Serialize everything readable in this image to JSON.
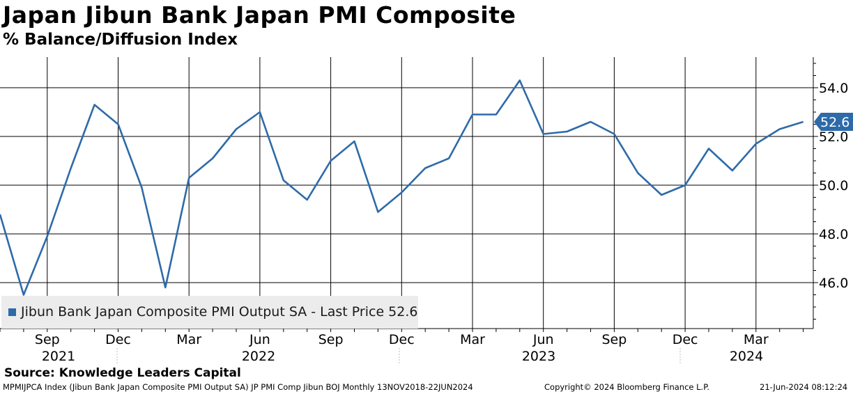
{
  "title": "Japan Jibun Bank Japan PMI Composite",
  "subtitle": "% Balance/Diffusion Index",
  "source": "Source: Knowledge Leaders Capital",
  "footer": {
    "left": "MPMIJPCA Index (Jibun Bank Japan Composite PMI Output SA) JP PMI Comp Jibun BOJ  Monthly 13NOV2018-22JUN2024",
    "center": "Copyright© 2024 Bloomberg Finance L.P.",
    "right": "21-Jun-2024 08:12:24"
  },
  "colors": {
    "series": "#2e6aa8",
    "grid": "#000000",
    "legend_bg": "#ececec"
  },
  "chart_data": {
    "type": "line",
    "title": "Japan Jibun Bank Japan PMI Composite",
    "ylabel": "% Balance/Diffusion Index",
    "ylim": [
      44.0,
      55.0
    ],
    "y_ticks": [
      "46.0",
      "48.0",
      "50.0",
      "52.0",
      "54.0"
    ],
    "x_month_labels": [
      "Sep",
      "Dec",
      "Mar",
      "Jun",
      "Sep",
      "Dec",
      "Mar",
      "Jun",
      "Sep",
      "Dec",
      "Mar"
    ],
    "x_year_labels": [
      "2021",
      "2022",
      "2023",
      "2024"
    ],
    "legend": "Jibun Bank Japan Composite PMI Output SA - Last Price 52.6",
    "last_value_label": "52.6",
    "grid": true,
    "series": [
      {
        "name": "Jibun Bank Japan Composite PMI Output SA",
        "x": [
          "2021-07",
          "2021-08",
          "2021-09",
          "2021-10",
          "2021-11",
          "2021-12",
          "2022-01",
          "2022-02",
          "2022-03",
          "2022-04",
          "2022-05",
          "2022-06",
          "2022-07",
          "2022-08",
          "2022-09",
          "2022-10",
          "2022-11",
          "2022-12",
          "2023-01",
          "2023-02",
          "2023-03",
          "2023-04",
          "2023-05",
          "2023-06",
          "2023-07",
          "2023-08",
          "2023-09",
          "2023-10",
          "2023-11",
          "2023-12",
          "2024-01",
          "2024-02",
          "2024-03",
          "2024-04",
          "2024-05"
        ],
        "values": [
          48.8,
          45.5,
          47.9,
          50.7,
          53.3,
          52.5,
          49.9,
          45.8,
          50.3,
          51.1,
          52.3,
          53.0,
          50.2,
          49.4,
          51.0,
          51.8,
          48.9,
          49.7,
          50.7,
          51.1,
          52.9,
          52.9,
          54.3,
          52.1,
          52.2,
          52.6,
          52.1,
          50.5,
          49.6,
          50.0,
          51.5,
          50.6,
          51.7,
          52.3,
          52.6
        ]
      }
    ]
  }
}
